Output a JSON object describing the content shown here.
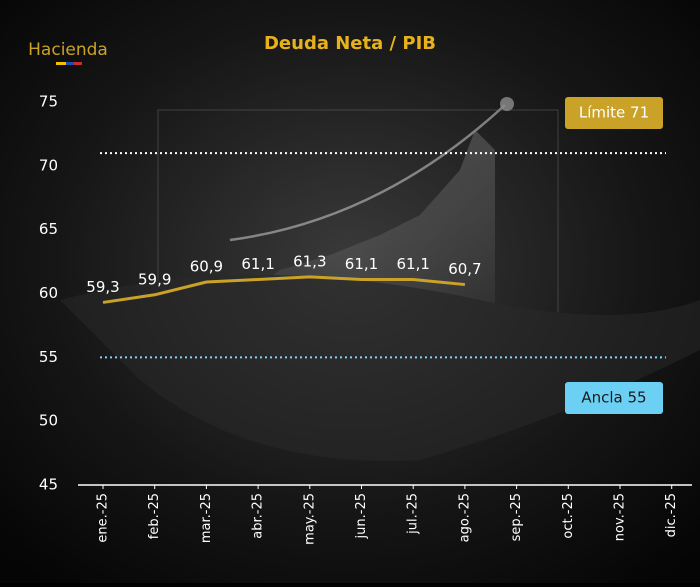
{
  "logo": "Hacienda",
  "chart_data": {
    "type": "line",
    "title": "Deuda Neta / PIB",
    "categories": [
      "ene.-25",
      "feb.-25",
      "mar.-25",
      "abr.-25",
      "may.-25",
      "jun.-25",
      "jul.-25",
      "ago.-25",
      "sep.-25",
      "oct.-25",
      "nov.-25",
      "dic.-25"
    ],
    "series": [
      {
        "name": "Deuda Neta / PIB",
        "color": "#c9a227",
        "values": [
          59.3,
          59.9,
          60.9,
          61.1,
          61.3,
          61.1,
          61.1,
          60.7,
          null,
          null,
          null,
          null
        ],
        "value_labels": [
          "59,3",
          "59,9",
          "60,9",
          "61,1",
          "61,3",
          "61,1",
          "61,1",
          "60,7",
          null,
          null,
          null,
          null
        ]
      }
    ],
    "ylim": [
      45,
      75
    ],
    "yticks": [
      45,
      50,
      55,
      60,
      65,
      70,
      75
    ],
    "reference_lines": [
      {
        "label": "Límite 71",
        "value": 71,
        "color": "#ffffff",
        "box_color": "#c9a227",
        "text_color": "#ffffff"
      },
      {
        "label": "Ancla 55",
        "value": 55,
        "color": "#7fd3f5",
        "box_color": "#6cd0f5",
        "text_color": "#1a1a1a"
      }
    ]
  }
}
